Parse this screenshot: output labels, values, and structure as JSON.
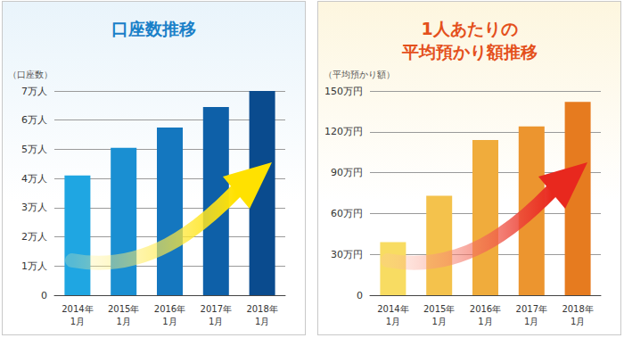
{
  "chart_data": [
    {
      "type": "bar",
      "title": "口座数推移",
      "y_label": "（口座数）",
      "categories": [
        "2014年\n1月",
        "2015年\n1月",
        "2016年\n1月",
        "2017年\n1月",
        "2018年\n1月"
      ],
      "values": [
        4.1,
        5.05,
        5.75,
        6.45,
        7.0
      ],
      "colors": [
        "#1fa6e2",
        "#1a8fd2",
        "#1477bf",
        "#0e60a8",
        "#0a4b8e"
      ],
      "ylim": [
        0,
        7
      ],
      "yticks": [
        0,
        {
          "value": 1,
          "label": "1万人"
        },
        {
          "value": 2,
          "label": "2万人"
        },
        {
          "value": 3,
          "label": "3万人"
        },
        {
          "value": 4,
          "label": "4万人"
        },
        {
          "value": 5,
          "label": "5万人"
        },
        {
          "value": 6,
          "label": "6万人"
        },
        {
          "value": 7,
          "label": "7万人"
        }
      ],
      "grid": true
    },
    {
      "type": "bar",
      "title": "1人あたりの\n平均預かり額推移",
      "y_label": "（平均預かり額）",
      "categories": [
        "2014年\n1月",
        "2015年\n1月",
        "2016年\n1月",
        "2017年\n1月",
        "2018年\n1月"
      ],
      "values": [
        39,
        73,
        114,
        124,
        142
      ],
      "colors": [
        "#f8dc62",
        "#f4c24c",
        "#f0ac3c",
        "#ec952f",
        "#e67b1f"
      ],
      "ylim": [
        0,
        150
      ],
      "yticks": [
        0,
        {
          "value": 30,
          "label": "30万円"
        },
        {
          "value": 60,
          "label": "60万円"
        },
        {
          "value": 90,
          "label": "90万円"
        },
        {
          "value": 120,
          "label": "120万円"
        },
        {
          "value": 150,
          "label": "150万円"
        }
      ],
      "grid": true
    }
  ]
}
